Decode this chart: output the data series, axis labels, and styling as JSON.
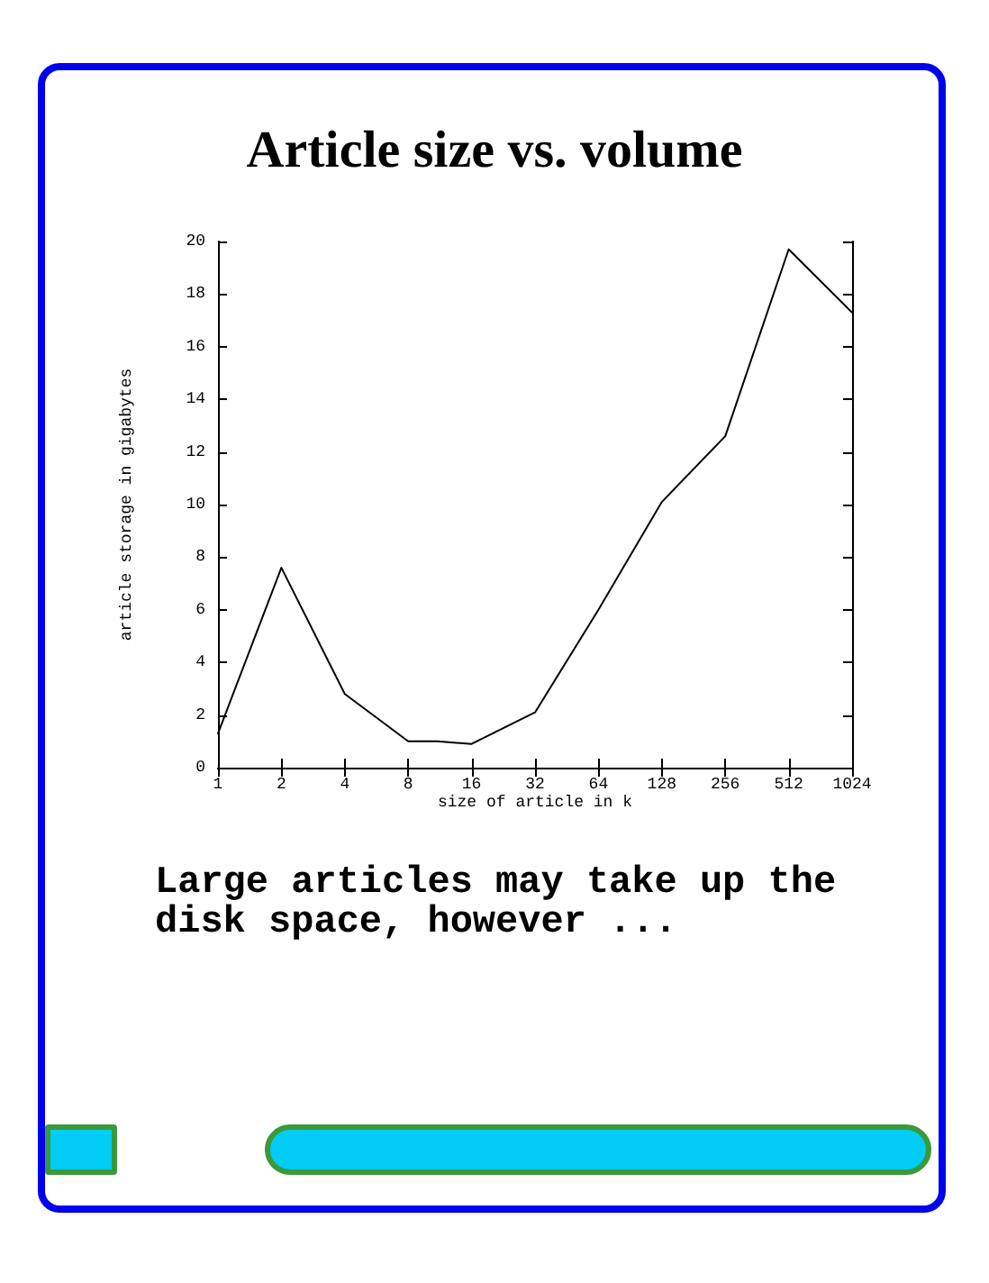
{
  "chart_data": {
    "type": "line",
    "title": "Article size vs. volume",
    "xlabel": "size of article in k",
    "ylabel": "article storage in gigabytes",
    "x": [
      1,
      2,
      4,
      8,
      11,
      16,
      32,
      64,
      128,
      256,
      512,
      1024
    ],
    "values": [
      1.3,
      7.6,
      2.8,
      1.0,
      1.0,
      0.9,
      2.1,
      6.0,
      10.1,
      12.6,
      19.7,
      17.3
    ],
    "color": "#000000",
    "log": "x",
    "xlim": [
      1,
      1024
    ],
    "ylim": [
      0,
      20
    ],
    "xticks": [
      1,
      2,
      4,
      8,
      16,
      32,
      64,
      128,
      256,
      512,
      1024
    ],
    "yticks": [
      0,
      2,
      4,
      6,
      8,
      10,
      12,
      14,
      16,
      18,
      20
    ],
    "marker": "none",
    "annotations": [
      "Large articles may take up the disk space, however ..."
    ]
  }
}
